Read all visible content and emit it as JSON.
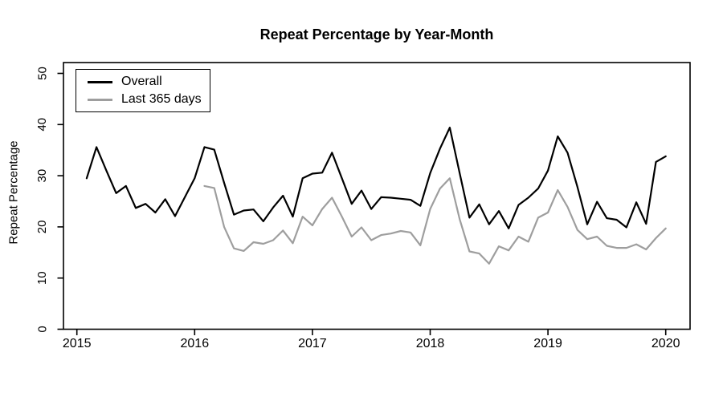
{
  "chart_data": {
    "type": "line",
    "title": "Repeat Percentage by Year-Month",
    "xlabel": "",
    "ylabel": "Repeat Percentage",
    "x_unit": "year-month",
    "x_tick_years": [
      2015,
      2016,
      2017,
      2018,
      2019,
      2020
    ],
    "y_ticks": [
      0,
      10,
      20,
      30,
      40,
      50
    ],
    "ylim": [
      0,
      52
    ],
    "grid": false,
    "legend_position": "top-left",
    "series": [
      {
        "name": "Overall",
        "color": "#000000",
        "start": "2015-02",
        "start_month_index": 1,
        "values": [
          29.5,
          35.6,
          31.0,
          26.6,
          28.0,
          23.7,
          24.5,
          22.8,
          25.4,
          22.1,
          25.8,
          29.5,
          35.6,
          35.1,
          28.6,
          22.4,
          23.2,
          23.4,
          21.1,
          23.8,
          26.1,
          22.0,
          29.5,
          30.4,
          30.6,
          34.5,
          29.5,
          24.5,
          27.1,
          23.5,
          25.8,
          25.7,
          25.5,
          25.3,
          24.1,
          30.5,
          35.3,
          39.4,
          30.5,
          21.8,
          24.4,
          20.5,
          23.1,
          19.7,
          24.3,
          25.7,
          27.5,
          31.0,
          37.7,
          34.5,
          27.8,
          20.5,
          24.9,
          21.7,
          21.4,
          19.9,
          24.8,
          20.6,
          32.7,
          33.8
        ]
      },
      {
        "name": "Last 365 days",
        "color": "#9e9e9e",
        "start": "2016-02",
        "start_month_index": 13,
        "values": [
          28.0,
          27.6,
          20.0,
          15.8,
          15.3,
          17.0,
          16.7,
          17.4,
          19.3,
          16.8,
          22.0,
          20.3,
          23.5,
          25.7,
          22.0,
          18.1,
          19.9,
          17.4,
          18.4,
          18.7,
          19.2,
          18.9,
          16.4,
          23.5,
          27.5,
          29.5,
          21.5,
          15.2,
          14.8,
          12.8,
          16.2,
          15.4,
          18.1,
          17.1,
          21.8,
          22.8,
          27.2,
          23.9,
          19.4,
          17.6,
          18.1,
          16.3,
          15.9,
          15.9,
          16.6,
          15.6,
          17.8,
          19.7
        ]
      }
    ]
  }
}
